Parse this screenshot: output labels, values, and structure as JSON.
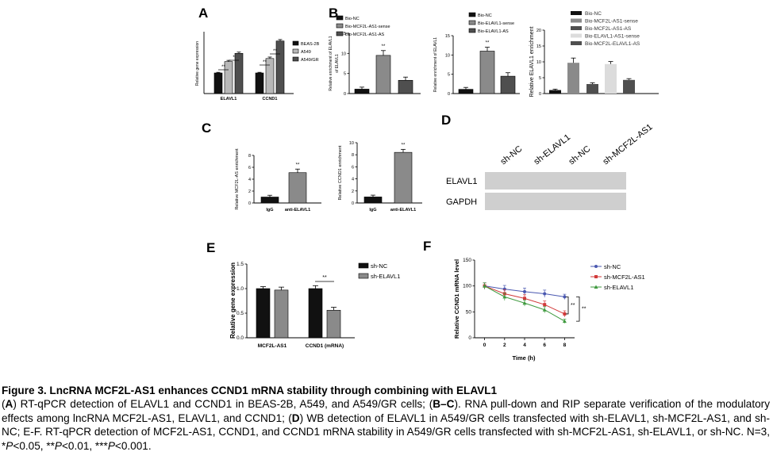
{
  "colors": {
    "black": "#111111",
    "dgray": "#4f4f4f",
    "mgray": "#8a8a8a",
    "lgray": "#b8b8b8",
    "vlgray": "#dcdcdc",
    "blue": "#4a58b0",
    "red": "#d23a3a",
    "green": "#3f9a3f"
  },
  "chart_data": [
    {
      "panel": "A",
      "type": "bar",
      "ylabel": "Relative gene expression",
      "categories": [
        "ELAVL1",
        "CCND1"
      ],
      "ylim": [
        0,
        3
      ],
      "series": [
        {
          "name": "BEAS-2B",
          "values": [
            1.0,
            1.0
          ],
          "err": [
            0.03,
            0.03
          ]
        },
        {
          "name": "A549",
          "values": [
            1.55,
            1.7
          ],
          "err": [
            0.06,
            0.07
          ]
        },
        {
          "name": "A549/GR",
          "values": [
            1.95,
            2.55
          ],
          "err": [
            0.06,
            0.07
          ]
        }
      ],
      "annotations": [
        "**",
        "*",
        "**",
        "**"
      ]
    },
    {
      "panel": "B1",
      "type": "bar",
      "ylabel": "Relative enrichment of ELAVL1",
      "categories": [
        "Bio-NC",
        "Bio-MCF2L-AS1-sense",
        "Bio-MCF2L-AS1-AS"
      ],
      "yticks": [
        "0",
        "5",
        "10",
        "15"
      ],
      "ylim": [
        0,
        15
      ],
      "values": [
        1.1,
        9.5,
        3.3
      ],
      "err": [
        0.5,
        1.2,
        0.8
      ],
      "annotations": [
        "**"
      ],
      "legend": [
        "Bio-NC",
        "Bio-MCF2L-AS1-sense",
        "Bio-MCF2L-AS1-AS"
      ]
    },
    {
      "panel": "B2",
      "type": "bar",
      "ylabel": "Relative enrichment of ELAVL1",
      "categories": [
        "Bio-NC",
        "Bio-ELAVL1-sense",
        "Bio-ELAVL1-AS"
      ],
      "yticks": [
        "0",
        "5",
        "10",
        "15"
      ],
      "ylim": [
        0,
        15
      ],
      "values": [
        1.1,
        11.0,
        4.5
      ],
      "err": [
        0.5,
        1.0,
        0.9
      ],
      "annotations": [
        "**"
      ],
      "legend": [
        "Bio-NC",
        "Bio-ELAVL1-sense",
        "Bio-ELAVL1-AS"
      ]
    },
    {
      "panel": "B3",
      "type": "bar",
      "ylabel": "Relative ELAVL1 enrichment",
      "categories": [
        "Bio-NC",
        "Bio-MCF2L-AS1-sense",
        "Bio-MCF2L-AS1-AS",
        "Bio-ELAVL1-AS1-sense",
        "Bio-MCF2L-ELAVL1-AS"
      ],
      "yticks": [
        "0",
        "5",
        "10",
        "15",
        "20"
      ],
      "ylim": [
        0,
        20
      ],
      "values": [
        1.1,
        9.7,
        3.0,
        9.3,
        4.3
      ],
      "err": [
        0.3,
        1.5,
        0.4,
        0.8,
        0.4
      ],
      "legend": [
        "Bio-NC",
        "Bio-MCF2L-AS1-sense",
        "Bio-MCF2L-AS1-AS",
        "Bio-ELAVL1-AS1-sense",
        "Bio-MCF2L-ELAVL1-AS"
      ]
    },
    {
      "panel": "C1",
      "type": "bar",
      "ylabel": "Relative MCF2L-AS enrichment",
      "categories": [
        "IgG",
        "anti-ELAVL1"
      ],
      "yticks": [
        "0",
        "2",
        "4",
        "6",
        "8"
      ],
      "ylim": [
        0,
        8
      ],
      "values": [
        1.0,
        5.1
      ],
      "err": [
        0.3,
        0.6
      ],
      "annotations": [
        "**"
      ]
    },
    {
      "panel": "C2",
      "type": "bar",
      "ylabel": "Relative CCND1 enrichment",
      "categories": [
        "IgG",
        "anti-ELAVL1"
      ],
      "yticks": [
        "0",
        "2",
        "4",
        "6",
        "8",
        "10"
      ],
      "ylim": [
        0,
        10
      ],
      "values": [
        1.0,
        8.4
      ],
      "err": [
        0.3,
        0.5
      ],
      "annotations": [
        "**"
      ]
    },
    {
      "panel": "E",
      "type": "bar",
      "ylabel": "Relative gene expression",
      "categories": [
        "MCF2L-AS1",
        "CCND1 (mRNA)"
      ],
      "yticks": [
        "0.0",
        "0.5",
        "1.0",
        "1.5"
      ],
      "ylim": [
        0,
        1.5
      ],
      "series": [
        {
          "name": "sh-NC",
          "values": [
            1.0,
            1.0
          ],
          "err": [
            0.04,
            0.06
          ]
        },
        {
          "name": "sh-ELAVL1",
          "values": [
            0.97,
            0.56
          ],
          "err": [
            0.06,
            0.06
          ]
        }
      ],
      "annotations": [
        "**"
      ]
    },
    {
      "panel": "F",
      "type": "line",
      "xlabel": "Time (h)",
      "ylabel": "Relative CCND1 mRNA level",
      "x": [
        0,
        2,
        4,
        6,
        8
      ],
      "xlim": [
        -1,
        9
      ],
      "ylim": [
        0,
        150
      ],
      "yticks": [
        "0",
        "50",
        "100",
        "150"
      ],
      "series": [
        {
          "name": "sh-NC",
          "values": [
            100,
            94,
            89,
            85,
            79
          ],
          "err": [
            6,
            7,
            7,
            7,
            5
          ]
        },
        {
          "name": "sh-MCF2L-AS1",
          "values": [
            100,
            85,
            76,
            64,
            46
          ],
          "err": [
            6,
            8,
            7,
            7,
            6
          ]
        },
        {
          "name": "sh-ELAVL1",
          "values": [
            100,
            79,
            67,
            54,
            32
          ],
          "err": [
            6,
            7,
            6,
            6,
            4
          ]
        }
      ],
      "annotations": [
        "**",
        "**"
      ]
    }
  ],
  "western": {
    "label": "D",
    "lanes": [
      "sh-NC",
      "sh-ELAVL1",
      "sh-NC",
      "sh-MCF2L-AS1"
    ],
    "rows": [
      "ELAVL1",
      "GAPDH"
    ],
    "band_intensity": [
      [
        1.0,
        0.55,
        1.0,
        0.7
      ],
      [
        1.0,
        1.0,
        1.0,
        1.0
      ]
    ]
  },
  "panels": {
    "A": "A",
    "B": "B",
    "C": "C",
    "D": "D",
    "E": "E",
    "F": "F"
  },
  "caption": {
    "title": "Figure 3. LncRNA MCF2L-AS1 enhances CCND1 mRNA stability through combining with ELAVL1",
    "p1": "(",
    "p1b": "A",
    "p2": ") RT-qPCR detection of ELAVL1 and CCND1 in BEAS-2B, A549, and A549/GR cells; (",
    "p2b": "B–C",
    "p3": "). RNA pull-down and RIP separate verification of the modulatory effects among lncRNA MCF2L-AS1, ELAVL1, and CCND1; (",
    "p3b": "D",
    "p4": ") WB detection of ELAVL1 in A549/GR cells transfected with sh-ELAVL1, sh-MCF2L-AS1, and sh-NC; E-F. RT-qPCR detection of MCF2L-AS1, CCND1, and CCND1 mRNA stability in A549/GR cells transfected with sh-MCF2L-AS1, sh-ELAVL1, or sh-NC. N=3, *",
    "pa": "P",
    "p5": "<0.05, **",
    "pb": "P",
    "p6": "<0.01, ***",
    "pc": "P",
    "p7": "<0.001."
  }
}
